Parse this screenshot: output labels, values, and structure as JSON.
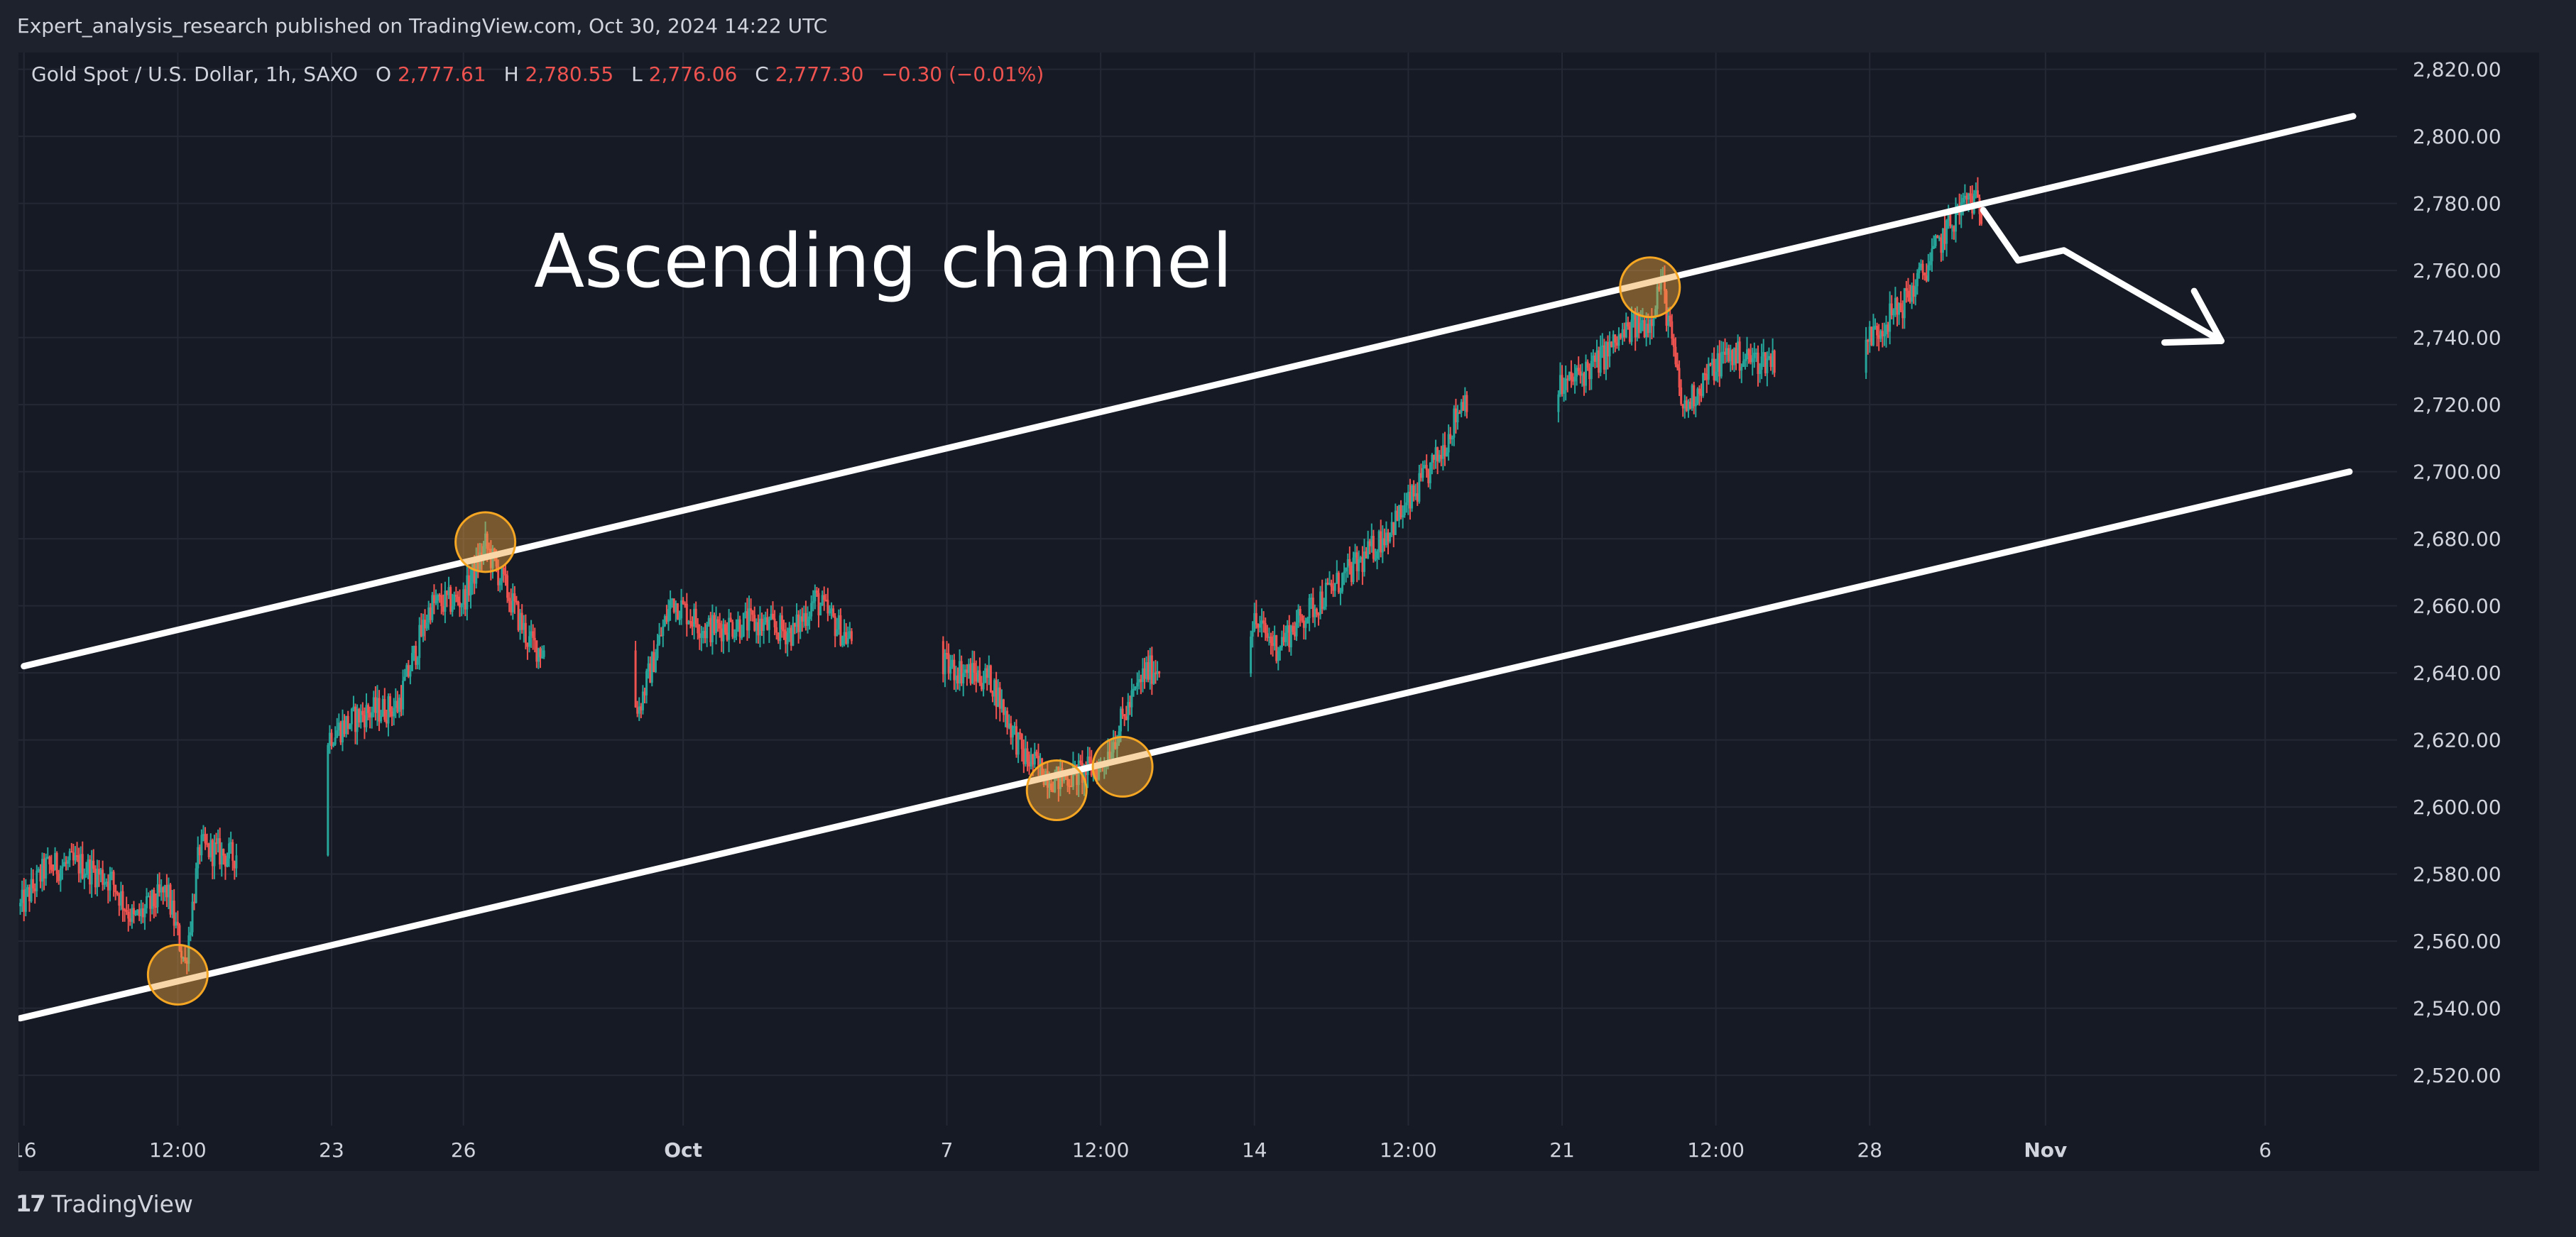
{
  "header": {
    "publish_line": "Expert_analysis_research published on TradingView.com, Oct 30, 2024 14:22 UTC"
  },
  "footer": {
    "brand_mark": "17",
    "brand_name": "TradingView"
  },
  "colors": {
    "background": "#161a25",
    "frame": "#1e222d",
    "up_candle": "#26a69a",
    "down_candle": "#ef5350",
    "grid": "#242835",
    "axis_text": "#d1d4dc",
    "channel_line": "#ffffff",
    "touch_marker_fill": "#f0a53c",
    "touch_marker_stroke": "#f5a623"
  },
  "chart_data": {
    "type": "candlestick",
    "symbol_line": {
      "name": "Gold Spot / U.S. Dollar, 1h, SAXO",
      "o_label": "O",
      "o_value": "2,777.61",
      "h_label": "H",
      "h_value": "2,780.55",
      "l_label": "L",
      "l_value": "2,776.06",
      "c_label": "C",
      "c_value": "2,777.30",
      "change": "−0.30 (−0.01%)"
    },
    "annotation_text": "Ascending channel",
    "ylim": [
      2505,
      2825
    ],
    "y_ticks": [
      2520,
      2540,
      2560,
      2580,
      2600,
      2620,
      2640,
      2660,
      2680,
      2700,
      2720,
      2740,
      2760,
      2780,
      2800,
      2820
    ],
    "y_tick_labels": [
      "2,520.00",
      "2,540.00",
      "2,560.00",
      "2,580.00",
      "2,600.00",
      "2,620.00",
      "2,640.00",
      "2,660.00",
      "2,680.00",
      "2,700.00",
      "2,720.00",
      "2,740.00",
      "2,760.00",
      "2,780.00",
      "2,800.00",
      "2,820.00"
    ],
    "x_range_days": [
      "2024-09-15T21:00",
      "2024-11-09T00:00"
    ],
    "x_ticks": [
      {
        "t": "2024-09-16T00:00",
        "label": "16"
      },
      {
        "t": "2024-09-19T12:00",
        "label": "12:00"
      },
      {
        "t": "2024-09-23T00:00",
        "label": "23"
      },
      {
        "t": "2024-09-26T00:00",
        "label": "26"
      },
      {
        "t": "2024-10-01T00:00",
        "label": "Oct"
      },
      {
        "t": "2024-10-07T00:00",
        "label": "7"
      },
      {
        "t": "2024-10-10T12:00",
        "label": "12:00"
      },
      {
        "t": "2024-10-14T00:00",
        "label": "14"
      },
      {
        "t": "2024-10-17T12:00",
        "label": "12:00"
      },
      {
        "t": "2024-10-21T00:00",
        "label": "21"
      },
      {
        "t": "2024-10-24T12:00",
        "label": "12:00"
      },
      {
        "t": "2024-10-28T00:00",
        "label": "28"
      },
      {
        "t": "2024-11-01T00:00",
        "label": "Nov"
      },
      {
        "t": "2024-11-06T00:00",
        "label": "6"
      }
    ],
    "price_path": [
      [
        "2024-09-15T22:00",
        2570
      ],
      [
        "2024-09-16T12:00",
        2582
      ],
      [
        "2024-09-17T06:00",
        2583
      ],
      [
        "2024-09-18T00:00",
        2578
      ],
      [
        "2024-09-18T12:00",
        2566
      ],
      [
        "2024-09-19T06:00",
        2575
      ],
      [
        "2024-09-19T16:00",
        2553
      ],
      [
        "2024-09-20T00:00",
        2588
      ],
      [
        "2024-09-20T18:00",
        2585
      ],
      [
        "2024-09-23T00:00",
        2622
      ],
      [
        "2024-09-23T18:00",
        2628
      ],
      [
        "2024-09-24T12:00",
        2630
      ],
      [
        "2024-09-25T06:00",
        2660
      ],
      [
        "2024-09-26T00:00",
        2662
      ],
      [
        "2024-09-26T12:00",
        2678
      ],
      [
        "2024-09-27T00:00",
        2664
      ],
      [
        "2024-09-27T12:00",
        2649
      ],
      [
        "2024-09-30T00:00",
        2630
      ],
      [
        "2024-09-30T18:00",
        2662
      ],
      [
        "2024-10-01T12:00",
        2653
      ],
      [
        "2024-10-02T12:00",
        2655
      ],
      [
        "2024-10-03T12:00",
        2652
      ],
      [
        "2024-10-04T00:00",
        2662
      ],
      [
        "2024-10-04T18:00",
        2650
      ],
      [
        "2024-10-07T12:00",
        2640
      ],
      [
        "2024-10-08T00:00",
        2638
      ],
      [
        "2024-10-08T18:00",
        2615
      ],
      [
        "2024-10-09T12:00",
        2608
      ],
      [
        "2024-10-10T00:00",
        2610
      ],
      [
        "2024-10-10T12:00",
        2612
      ],
      [
        "2024-10-11T12:00",
        2640
      ],
      [
        "2024-10-14T00:00",
        2655
      ],
      [
        "2024-10-14T12:00",
        2648
      ],
      [
        "2024-10-15T12:00",
        2662
      ],
      [
        "2024-10-16T12:00",
        2674
      ],
      [
        "2024-10-17T12:00",
        2690
      ],
      [
        "2024-10-18T06:00",
        2706
      ],
      [
        "2024-10-18T18:00",
        2722
      ],
      [
        "2024-10-21T00:00",
        2725
      ],
      [
        "2024-10-21T18:00",
        2732
      ],
      [
        "2024-10-22T12:00",
        2742
      ],
      [
        "2024-10-23T00:00",
        2745
      ],
      [
        "2024-10-23T06:00",
        2758
      ],
      [
        "2024-10-23T18:00",
        2718
      ],
      [
        "2024-10-24T06:00",
        2728
      ],
      [
        "2024-10-24T18:00",
        2735
      ],
      [
        "2024-10-25T12:00",
        2733
      ],
      [
        "2024-10-28T00:00",
        2740
      ],
      [
        "2024-10-28T18:00",
        2750
      ],
      [
        "2024-10-29T06:00",
        2760
      ],
      [
        "2024-10-29T18:00",
        2772
      ],
      [
        "2024-10-30T06:00",
        2782
      ],
      [
        "2024-10-30T13:00",
        2778
      ]
    ],
    "channel_lines": [
      {
        "name": "upper",
        "from": [
          "2024-09-16T00:00",
          2642
        ],
        "to": [
          "2024-11-08T00:00",
          2806
        ]
      },
      {
        "name": "lower",
        "from": [
          "2024-09-15T22:00",
          2537
        ],
        "to": [
          "2024-11-07T22:00",
          2700
        ]
      }
    ],
    "touch_points": [
      [
        "2024-09-19T12:00",
        2550
      ],
      [
        "2024-09-26T12:00",
        2679
      ],
      [
        "2024-10-09T12:00",
        2605
      ],
      [
        "2024-10-11T00:00",
        2612
      ],
      [
        "2024-10-23T00:00",
        2755
      ]
    ],
    "projection_arrow": [
      [
        "2024-10-30T14:00",
        2778
      ],
      [
        "2024-10-31T09:00",
        2763
      ],
      [
        "2024-11-01T10:00",
        2766
      ],
      [
        "2024-11-05T00:00",
        2739
      ]
    ]
  }
}
